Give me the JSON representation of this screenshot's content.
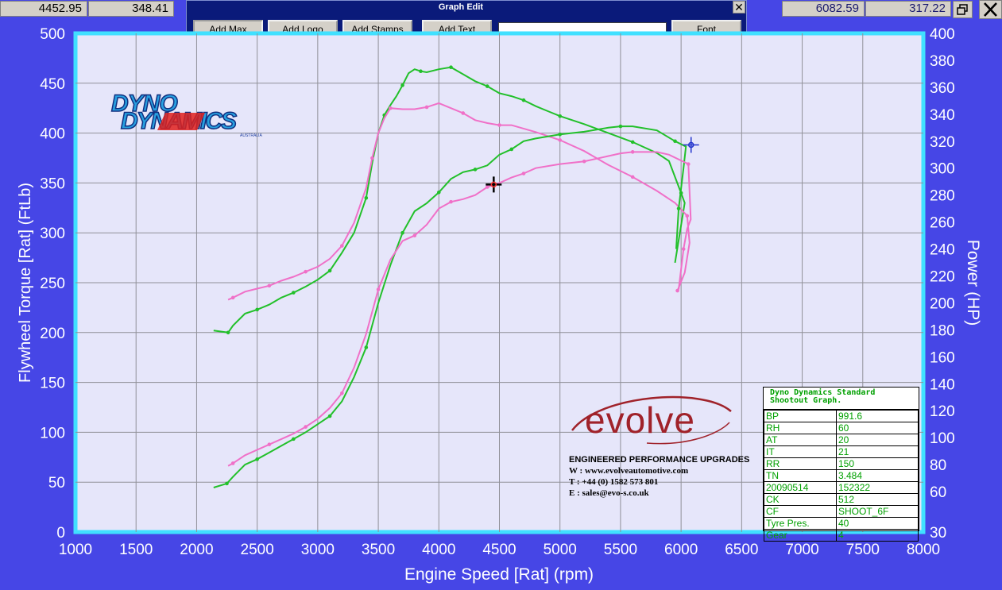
{
  "readouts": {
    "left_rpm": "4452.95",
    "left_value": "348.41",
    "right_rpm": "6082.59",
    "right_value": "317.22"
  },
  "window_controls": {
    "restore_icon": "restore-icon",
    "close_icon": "close-icon"
  },
  "graph_edit": {
    "title": "Graph Edit",
    "buttons": [
      "Add Max Power",
      "Add Logo",
      "Add Stamps",
      "Add Text",
      "Font"
    ],
    "text_value": ""
  },
  "colors": {
    "background": "#4646e6",
    "plot_bg": "#e6e6fa",
    "plot_border": "#40e0ff",
    "green": "#22c02a",
    "pink": "#f070c8"
  },
  "chart_data": {
    "type": "line",
    "xlabel": "Engine Speed [Rat] (rpm)",
    "ylabel": "Flywheel Torque [Rat] (FtLb)",
    "y2label": "Power (HP)",
    "xlim": [
      1000,
      8000
    ],
    "ylim": [
      0,
      500
    ],
    "y2lim": [
      30,
      400
    ],
    "x_ticks": [
      1000,
      1500,
      2000,
      2500,
      3000,
      3500,
      4000,
      4500,
      5000,
      5500,
      6000,
      6500,
      7000,
      7500,
      8000
    ],
    "y_ticks": [
      0,
      50,
      100,
      150,
      200,
      250,
      300,
      350,
      400,
      450,
      500
    ],
    "y2_ticks": [
      30,
      60,
      80,
      100,
      120,
      140,
      160,
      180,
      200,
      220,
      240,
      260,
      280,
      300,
      320,
      340,
      360,
      380,
      400
    ],
    "grid": true,
    "series": [
      {
        "axis": "y",
        "color": "#22c02a",
        "x": [
          2140,
          2260,
          2300,
          2400,
          2500,
          2600,
          2700,
          2800,
          2900,
          3000,
          3100,
          3200,
          3300,
          3400,
          3450,
          3500,
          3550,
          3600,
          3650,
          3700,
          3750,
          3800,
          3850,
          3900,
          4000,
          4100,
          4200,
          4300,
          4400,
          4500,
          4600,
          4700,
          4800,
          4900,
          5000,
          5200,
          5400,
          5600,
          5800,
          5900,
          6000,
          6030,
          5950
        ],
        "y": [
          202,
          200,
          207,
          219,
          223,
          228,
          235,
          240,
          246,
          253,
          262,
          280,
          300,
          335,
          370,
          400,
          418,
          428,
          437,
          448,
          460,
          464,
          462,
          461,
          464,
          466,
          459,
          452,
          447,
          440,
          437,
          433,
          427,
          422,
          417,
          409,
          400,
          391,
          380,
          372,
          340,
          330,
          270
        ]
      },
      {
        "axis": "y",
        "color": "#f070c8",
        "x": [
          2260,
          2300,
          2400,
          2500,
          2600,
          2700,
          2800,
          2900,
          3000,
          3100,
          3200,
          3300,
          3400,
          3450,
          3500,
          3550,
          3600,
          3700,
          3800,
          3900,
          4000,
          4100,
          4200,
          4300,
          4400,
          4500,
          4600,
          4800,
          5000,
          5200,
          5400,
          5600,
          5800,
          5950,
          6050,
          6070,
          6030,
          5970
        ],
        "y": [
          233,
          235,
          241,
          244,
          247,
          252,
          256,
          261,
          266,
          274,
          287,
          310,
          345,
          375,
          400,
          415,
          425,
          424,
          424,
          426,
          430,
          425,
          420,
          413,
          410,
          408,
          408,
          401,
          393,
          382,
          368,
          356,
          342,
          330,
          317,
          290,
          260,
          242
        ]
      },
      {
        "axis": "y2",
        "color": "#22c02a",
        "x": [
          2140,
          2250,
          2300,
          2400,
          2500,
          2600,
          2700,
          2800,
          2900,
          3000,
          3100,
          3200,
          3300,
          3400,
          3500,
          3600,
          3700,
          3800,
          3900,
          4000,
          4100,
          4200,
          4300,
          4400,
          4500,
          4600,
          4700,
          4800,
          5000,
          5200,
          5400,
          5500,
          5600,
          5800,
          5950,
          6040,
          6020,
          5980,
          5960
        ],
        "y": [
          63,
          66,
          71,
          80,
          84,
          89,
          94,
          99,
          104,
          110,
          116,
          127,
          145,
          167,
          200,
          228,
          252,
          268,
          274,
          282,
          292,
          297,
          299,
          302,
          310,
          314,
          320,
          322,
          325,
          327,
          330,
          331,
          331,
          328,
          320,
          316,
          300,
          270,
          240
        ]
      },
      {
        "axis": "y2",
        "color": "#f070c8",
        "x": [
          2260,
          2300,
          2400,
          2500,
          2600,
          2700,
          2800,
          2900,
          3000,
          3100,
          3200,
          3300,
          3400,
          3500,
          3600,
          3700,
          3800,
          3900,
          4000,
          4100,
          4200,
          4300,
          4400,
          4500,
          4600,
          4700,
          4800,
          5000,
          5200,
          5400,
          5500,
          5600,
          5800,
          5900,
          6060,
          6080,
          6050,
          6020,
          5980
        ],
        "y": [
          79,
          81,
          87,
          91,
          95,
          99,
          103,
          108,
          114,
          122,
          133,
          152,
          177,
          210,
          232,
          246,
          250,
          258,
          270,
          275,
          277,
          280,
          286,
          289,
          293,
          296,
          300,
          303,
          305,
          309,
          311,
          312,
          312,
          310,
          303,
          262,
          255,
          240,
          210
        ]
      }
    ],
    "markers": [
      {
        "type": "crosshair",
        "x": 4452.95,
        "y": 348.41,
        "color": "#000000"
      },
      {
        "type": "crosshair",
        "x": 6082.59,
        "y": 317.22,
        "color": "#2233cc",
        "axis": "y2"
      }
    ]
  },
  "logos": {
    "dyno_line1": "DYNO",
    "dyno_line2": "DYNAMICS",
    "dyno_small": "AUSTRALIA",
    "evolve_word": "evolve",
    "evolve_tagline": "ENGINEERED PERFORMANCE UPGRADES",
    "evolve_web": "W : www.evolveautomotive.com",
    "evolve_tel": "T : +44 (0) 1582 573 801",
    "evolve_email": "E : sales@evo-s.co.uk"
  },
  "info_box": {
    "title_line1": "Dyno Dynamics Standard",
    "title_line2": "Shootout Graph.",
    "rows": [
      [
        "BP",
        "991.6"
      ],
      [
        "RH",
        "60"
      ],
      [
        "AT",
        "20"
      ],
      [
        "IT",
        "21"
      ],
      [
        "RR",
        "150"
      ],
      [
        "TN",
        "3.484"
      ],
      [
        "20090514",
        "152322"
      ],
      [
        "CK",
        "512"
      ],
      [
        "CF",
        "SHOOT_6F"
      ],
      [
        "Tyre Pres.",
        "40"
      ],
      [
        "Gear",
        "4"
      ]
    ]
  }
}
